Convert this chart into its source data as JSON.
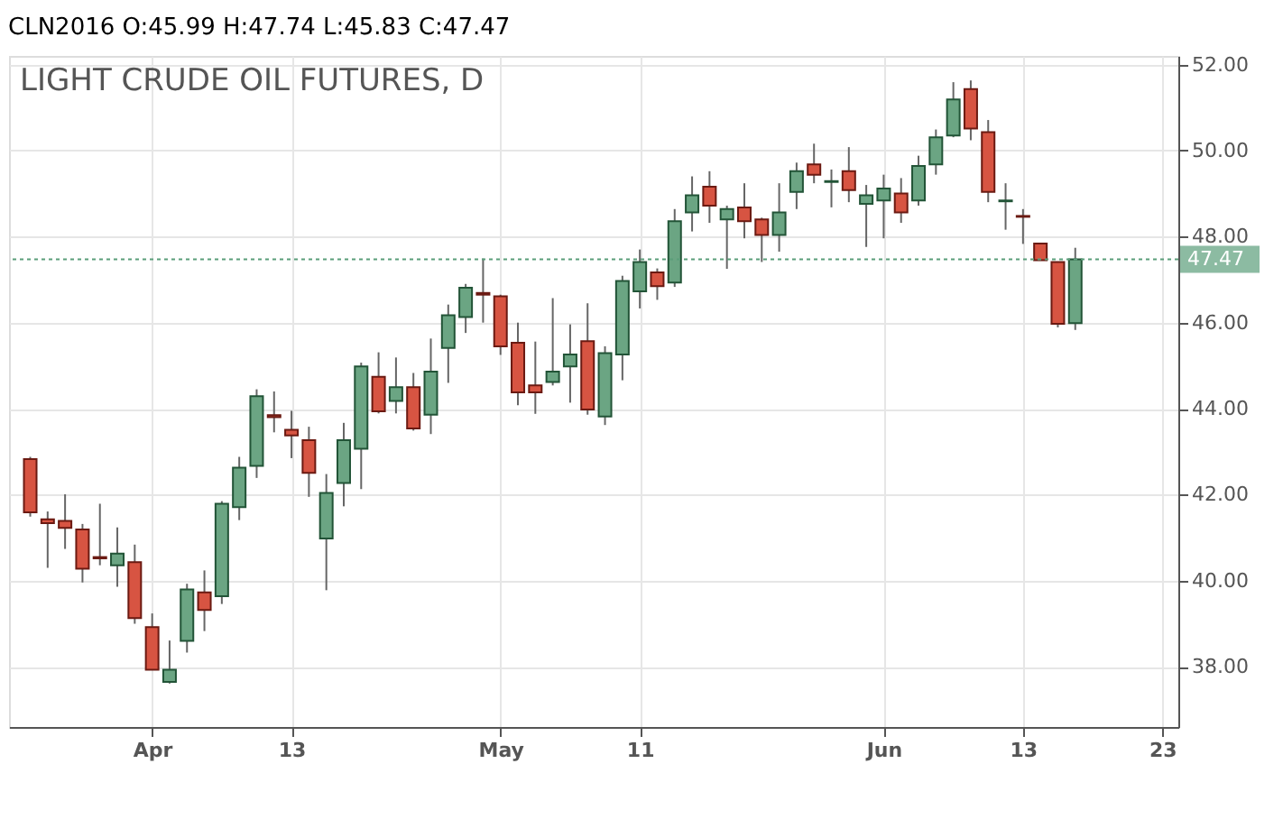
{
  "chart_data": {
    "type": "candlestick",
    "title": "CLN2016 O:45.99 H:47.74 L:45.83 C:47.47",
    "subtitle": "LIGHT CRUDE OIL FUTURES, D",
    "categories": [
      null,
      null,
      null,
      null,
      null,
      null,
      null,
      "Apr",
      null,
      null,
      null,
      null,
      null,
      null,
      null,
      "13",
      null,
      null,
      null,
      null,
      null,
      null,
      null,
      null,
      null,
      null,
      null,
      "May",
      null,
      null,
      null,
      null,
      null,
      null,
      null,
      "11",
      null,
      null,
      null,
      null,
      null,
      null,
      null,
      null,
      null,
      null,
      null,
      null,
      null,
      "Jun",
      null,
      null,
      null,
      null,
      null,
      null,
      null,
      "13",
      null,
      null,
      null,
      null,
      null,
      null,
      null,
      "23"
    ],
    "ohlc": [
      [
        42.83,
        42.88,
        41.49,
        41.59
      ],
      [
        41.43,
        41.61,
        40.3,
        41.34
      ],
      [
        41.39,
        42.01,
        40.74,
        41.23
      ],
      [
        41.19,
        41.32,
        39.96,
        40.28
      ],
      [
        40.55,
        41.79,
        40.36,
        40.52
      ],
      [
        40.36,
        41.24,
        39.86,
        40.63
      ],
      [
        40.43,
        40.84,
        39.0,
        39.13
      ],
      [
        38.92,
        39.24,
        37.92,
        37.93
      ],
      [
        37.65,
        38.61,
        37.61,
        37.93
      ],
      [
        38.6,
        39.93,
        38.33,
        39.8
      ],
      [
        39.73,
        40.24,
        38.83,
        39.32
      ],
      [
        39.64,
        41.85,
        39.46,
        41.79
      ],
      [
        41.71,
        42.88,
        41.41,
        42.63
      ],
      [
        42.67,
        44.45,
        42.39,
        44.29
      ],
      [
        43.85,
        44.4,
        43.45,
        43.8
      ],
      [
        43.51,
        43.95,
        42.85,
        43.38
      ],
      [
        43.27,
        43.58,
        41.95,
        42.51
      ],
      [
        40.98,
        42.48,
        39.78,
        42.04
      ],
      [
        42.27,
        43.67,
        41.73,
        43.27
      ],
      [
        43.07,
        45.07,
        42.13,
        44.98
      ],
      [
        44.74,
        45.31,
        43.89,
        43.94
      ],
      [
        44.18,
        45.19,
        43.89,
        44.5
      ],
      [
        44.5,
        44.83,
        43.49,
        43.54
      ],
      [
        43.86,
        45.63,
        43.41,
        44.86
      ],
      [
        45.41,
        46.42,
        44.6,
        46.17
      ],
      [
        46.13,
        46.9,
        45.76,
        46.81
      ],
      [
        46.69,
        47.49,
        46.0,
        46.65
      ],
      [
        46.61,
        46.65,
        45.25,
        45.45
      ],
      [
        45.53,
        46.0,
        44.08,
        44.38
      ],
      [
        44.54,
        45.56,
        43.88,
        44.38
      ],
      [
        44.62,
        46.57,
        44.54,
        44.86
      ],
      [
        44.98,
        45.96,
        44.14,
        45.26
      ],
      [
        45.57,
        46.45,
        43.86,
        43.98
      ],
      [
        43.82,
        45.45,
        43.62,
        45.29
      ],
      [
        45.26,
        47.09,
        44.66,
        46.97
      ],
      [
        46.73,
        47.7,
        46.33,
        47.41
      ],
      [
        47.17,
        47.26,
        46.53,
        46.85
      ],
      [
        46.93,
        48.64,
        46.83,
        48.36
      ],
      [
        48.56,
        49.4,
        48.12,
        48.96
      ],
      [
        49.16,
        49.52,
        48.32,
        48.72
      ],
      [
        48.4,
        48.72,
        47.25,
        48.64
      ],
      [
        48.68,
        49.24,
        47.96,
        48.36
      ],
      [
        48.4,
        48.44,
        47.41,
        48.04
      ],
      [
        48.04,
        49.24,
        47.65,
        48.56
      ],
      [
        49.04,
        49.72,
        48.64,
        49.52
      ],
      [
        49.68,
        50.16,
        49.24,
        49.44
      ],
      [
        49.27,
        49.56,
        48.68,
        49.29
      ],
      [
        49.52,
        50.08,
        48.8,
        49.08
      ],
      [
        48.76,
        49.2,
        47.76,
        48.96
      ],
      [
        48.84,
        49.44,
        47.96,
        49.12
      ],
      [
        49.0,
        49.36,
        48.32,
        48.56
      ],
      [
        48.84,
        49.88,
        48.72,
        49.64
      ],
      [
        49.68,
        50.49,
        49.44,
        50.31
      ],
      [
        50.35,
        51.59,
        50.31,
        51.19
      ],
      [
        51.43,
        51.63,
        50.24,
        50.51
      ],
      [
        50.43,
        50.71,
        48.8,
        49.04
      ],
      [
        48.82,
        49.24,
        48.16,
        48.84
      ],
      [
        48.48,
        48.64,
        47.83,
        48.46
      ],
      [
        47.84,
        47.84,
        47.45,
        47.45
      ],
      [
        47.41,
        47.41,
        45.89,
        45.97
      ],
      [
        45.99,
        47.74,
        45.83,
        47.47
      ],
      null,
      null,
      null,
      null,
      null
    ],
    "colors": [
      "#d75442",
      "#d75442",
      "#d75442",
      "#d75442",
      "#d75442",
      "#6ba583",
      "#d75442",
      "#d75442",
      "#6ba583",
      "#6ba583",
      "#d75442",
      "#6ba583",
      "#6ba583",
      "#6ba583",
      "#d75442",
      "#d75442",
      "#d75442",
      "#6ba583",
      "#6ba583",
      "#6ba583",
      "#d75442",
      "#6ba583",
      "#d75442",
      "#6ba583",
      "#6ba583",
      "#6ba583",
      "#d75442",
      "#d75442",
      "#d75442",
      "#d75442",
      "#6ba583",
      "#6ba583",
      "#d75442",
      "#6ba583",
      "#6ba583",
      "#6ba583",
      "#d75442",
      "#6ba583",
      "#6ba583",
      "#d75442",
      "#6ba583",
      "#d75442",
      "#d75442",
      "#6ba583",
      "#6ba583",
      "#d75442",
      "#6ba583",
      "#d75442",
      "#6ba583",
      "#6ba583",
      "#d75442",
      "#6ba583",
      "#6ba583",
      "#6ba583",
      "#d75442",
      "#d75442",
      "#6ba583",
      "#d75442",
      "#d75442",
      "#d75442",
      "#6ba583",
      null,
      null,
      null,
      null,
      null
    ],
    "ylim": [
      36.6,
      52.2
    ],
    "yticks": [
      {
        "value": 38,
        "label": "38.00"
      },
      {
        "value": 40,
        "label": "40.00"
      },
      {
        "value": 42,
        "label": "42.00"
      },
      {
        "value": 44,
        "label": "44.00"
      },
      {
        "value": 46,
        "label": "46.00"
      },
      {
        "value": 48,
        "label": "48.00"
      },
      {
        "value": 50,
        "label": "50.00"
      },
      {
        "value": 52,
        "label": "52.00"
      }
    ],
    "ref_lines": [
      {
        "axis": "y",
        "value": 47.47,
        "label": "47.47",
        "color": "#5b9e7a",
        "line_style": "dotted"
      }
    ],
    "grid": true
  }
}
